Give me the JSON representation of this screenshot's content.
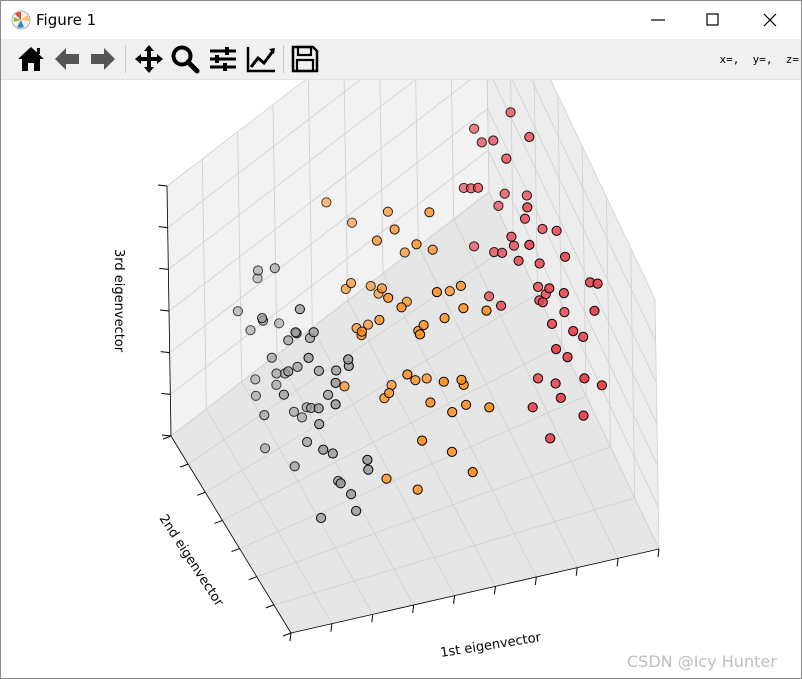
{
  "window": {
    "title": "Figure 1",
    "app_icon": "matplotlib-icon",
    "controls": [
      "minimize-icon",
      "maximize-icon",
      "close-icon"
    ]
  },
  "toolbar": {
    "buttons": [
      "home-icon",
      "back-arrow-icon",
      "forward-arrow-icon",
      "pan-move-icon",
      "zoom-magnifier-icon",
      "configure-subplots-icon",
      "edit-axis-line-icon",
      "save-disk-icon"
    ],
    "coords_readout": "x=,  y=,  z="
  },
  "watermark": "CSDN @Icy Hunter",
  "chart_data": {
    "type": "scatter",
    "projection": "3d",
    "title": "",
    "xlabel": "1st eigenvector",
    "ylabel": "2nd eigenvector",
    "zlabel": "3rd eigenvector",
    "tick_labels_visible": false,
    "grid": true,
    "view": {
      "elev": 30,
      "azim": -110
    },
    "xlim": [
      -4,
      4
    ],
    "ylim": [
      -1.5,
      1.5
    ],
    "zlim": [
      -1,
      1
    ],
    "series": [
      {
        "color": "#999999",
        "points": [
          [
            -2.6,
            0.2,
            0.5
          ],
          [
            -2.4,
            0.4,
            0.6
          ],
          [
            -2.8,
            -0.2,
            0.1
          ],
          [
            -3.0,
            0.6,
            0.8
          ],
          [
            -2.9,
            0.8,
            0.7
          ],
          [
            -2.2,
            0.3,
            0.2
          ],
          [
            -2.5,
            -0.4,
            -0.2
          ],
          [
            -2.1,
            -0.6,
            -0.4
          ],
          [
            -2.7,
            0.1,
            0.4
          ],
          [
            -2.3,
            -0.1,
            0.0
          ],
          [
            -2.0,
            0.5,
            0.3
          ],
          [
            -2.6,
            -0.8,
            -0.6
          ],
          [
            -2.4,
            0.9,
            0.5
          ],
          [
            -2.2,
            -0.3,
            -0.5
          ],
          [
            -1.9,
            0.2,
            -0.1
          ],
          [
            -2.8,
            0.5,
            0.9
          ],
          [
            -3.2,
            0.0,
            0.6
          ],
          [
            -2.5,
            1.0,
            0.4
          ],
          [
            -2.1,
            0.0,
            -0.3
          ],
          [
            -2.0,
            -0.9,
            -0.7
          ],
          [
            -2.7,
            -0.5,
            0.2
          ],
          [
            -2.3,
            0.7,
            -0.2
          ],
          [
            -1.8,
            -0.4,
            -0.6
          ],
          [
            -2.6,
            1.2,
            -0.1
          ],
          [
            -2.4,
            -1.1,
            -0.3
          ],
          [
            -2.9,
            0.3,
            0.3
          ],
          [
            -2.2,
            -1.2,
            -0.8
          ],
          [
            -2.0,
            0.8,
            -0.5
          ],
          [
            -1.7,
            0.6,
            -0.8
          ],
          [
            -2.5,
            0.0,
            -0.7
          ],
          [
            -2.8,
            -1.0,
            0.0
          ],
          [
            -1.9,
            -0.2,
            0.1
          ],
          [
            -2.3,
            1.1,
            0.8
          ],
          [
            -2.6,
            -0.6,
            -0.9
          ],
          [
            -1.6,
            0.1,
            -0.9
          ],
          [
            -2.1,
            1.3,
            0.1
          ],
          [
            -2.4,
            0.2,
            -0.4
          ],
          [
            -2.7,
            0.9,
            0.0
          ],
          [
            -1.8,
            1.0,
            -0.2
          ],
          [
            -2.2,
            -0.7,
            0.4
          ],
          [
            -2.0,
            -1.3,
            -0.1
          ],
          [
            -2.5,
            0.6,
            0.0
          ],
          [
            -1.5,
            -0.8,
            -1.0
          ],
          [
            -2.9,
            -0.3,
            -0.4
          ],
          [
            -2.3,
            0.4,
            -0.9
          ],
          [
            -2.6,
            0.7,
            0.2
          ],
          [
            -1.7,
            -1.1,
            -0.4
          ],
          [
            -2.1,
            0.9,
            0.6
          ],
          [
            -3.1,
            0.4,
            0.2
          ],
          [
            -2.4,
            -0.9,
            0.3
          ]
        ]
      },
      {
        "color": "#ff8c1a",
        "points": [
          [
            -0.8,
            0.3,
            0.4
          ],
          [
            -0.5,
            0.5,
            0.6
          ],
          [
            -0.2,
            -0.2,
            0.2
          ],
          [
            0.3,
            0.1,
            0.0
          ],
          [
            0.6,
            -0.4,
            -0.2
          ],
          [
            -0.3,
            0.7,
            0.5
          ],
          [
            0.1,
            0.4,
            0.3
          ],
          [
            -0.7,
            -0.3,
            -0.1
          ],
          [
            0.5,
            0.6,
            -0.3
          ],
          [
            -0.1,
            -0.6,
            -0.4
          ],
          [
            0.8,
            0.2,
            0.1
          ],
          [
            -0.4,
            0.0,
            -0.5
          ],
          [
            0.2,
            -0.8,
            -0.3
          ],
          [
            -0.9,
            0.6,
            0.8
          ],
          [
            0.4,
            0.9,
            0.2
          ],
          [
            -0.6,
            -0.5,
            0.1
          ],
          [
            0.7,
            -0.1,
            -0.6
          ],
          [
            0.0,
            0.3,
            -0.2
          ],
          [
            -0.3,
            0.9,
            0.1
          ],
          [
            0.9,
            0.5,
            0.4
          ],
          [
            -0.8,
            -0.1,
            0.0
          ],
          [
            0.3,
            -0.5,
            0.5
          ],
          [
            -0.5,
            0.2,
            -0.3
          ],
          [
            0.6,
            0.8,
            -0.1
          ],
          [
            1.0,
            -0.2,
            0.3
          ],
          [
            -0.2,
            1.1,
            0.4
          ],
          [
            0.1,
            -0.3,
            -0.7
          ],
          [
            -0.7,
            0.8,
            0.3
          ],
          [
            0.4,
            0.0,
            0.6
          ],
          [
            -0.4,
            -0.8,
            -0.2
          ],
          [
            0.8,
            -0.6,
            0.0
          ],
          [
            -1.0,
            0.1,
            0.2
          ],
          [
            0.2,
            0.6,
            0.7
          ],
          [
            0.5,
            -0.9,
            -0.5
          ],
          [
            -0.6,
            1.0,
            -0.1
          ],
          [
            1.1,
            0.3,
            -0.4
          ],
          [
            -0.1,
            0.0,
            0.8
          ],
          [
            0.7,
            0.4,
            -0.8
          ],
          [
            -0.9,
            -0.4,
            -0.6
          ],
          [
            0.0,
            -1.0,
            0.1
          ],
          [
            1.3,
            0.1,
            0.2
          ],
          [
            -0.3,
            -0.2,
            0.6
          ],
          [
            0.9,
            1.0,
            0.0
          ],
          [
            -0.8,
            0.4,
            -0.8
          ],
          [
            0.6,
            0.1,
            0.9
          ],
          [
            1.5,
            -0.3,
            -0.2
          ],
          [
            -0.5,
            -1.1,
            0.3
          ],
          [
            0.3,
            1.2,
            -0.3
          ],
          [
            1.2,
            0.7,
            0.5
          ],
          [
            -0.2,
            0.5,
            -0.9
          ]
        ]
      },
      {
        "color": "#e8404a",
        "points": [
          [
            2.4,
            0.3,
            0.4
          ],
          [
            2.7,
            0.5,
            0.2
          ],
          [
            2.9,
            -0.2,
            0.0
          ],
          [
            3.1,
            0.1,
            -0.2
          ],
          [
            2.5,
            0.8,
            0.6
          ],
          [
            2.8,
            -0.5,
            -0.3
          ],
          [
            3.3,
            0.4,
            0.1
          ],
          [
            2.6,
            0.0,
            0.3
          ],
          [
            3.0,
            0.7,
            -0.1
          ],
          [
            2.2,
            -0.3,
            0.5
          ],
          [
            3.5,
            -0.1,
            -0.4
          ],
          [
            2.9,
            0.9,
            0.3
          ],
          [
            2.3,
            0.6,
            0.8
          ],
          [
            3.2,
            -0.6,
            0.0
          ],
          [
            2.7,
            -0.8,
            -0.5
          ],
          [
            3.6,
            0.5,
            -0.2
          ],
          [
            2.5,
            -0.1,
            0.1
          ],
          [
            3.4,
            0.2,
            0.4
          ],
          [
            2.8,
            0.3,
            -0.6
          ],
          [
            3.0,
            -0.4,
            0.5
          ],
          [
            2.1,
            0.2,
            0.0
          ],
          [
            3.7,
            -0.3,
            -0.1
          ],
          [
            2.6,
            0.9,
            -0.2
          ],
          [
            3.1,
            0.6,
            0.6
          ],
          [
            2.4,
            -0.6,
            0.2
          ],
          [
            3.3,
            -0.8,
            -0.3
          ],
          [
            2.9,
            1.1,
            0.1
          ],
          [
            3.8,
            0.0,
            -0.5
          ],
          [
            2.2,
            0.7,
            -0.4
          ],
          [
            3.5,
            0.8,
            0.3
          ],
          [
            2.7,
            -0.4,
            0.7
          ],
          [
            3.2,
            0.3,
            -0.7
          ],
          [
            2.5,
            0.4,
            0.9
          ],
          [
            3.0,
            -1.0,
            0.2
          ],
          [
            3.6,
            -0.5,
            0.0
          ],
          [
            2.8,
            0.1,
            0.5
          ],
          [
            3.4,
            1.0,
            -0.1
          ],
          [
            2.3,
            -0.2,
            -0.3
          ],
          [
            3.9,
            0.4,
            0.1
          ],
          [
            2.6,
            -0.9,
            -0.1
          ],
          [
            3.1,
            0.9,
            -0.4
          ],
          [
            2.9,
            0.5,
            0.0
          ],
          [
            3.7,
            0.7,
            0.4
          ],
          [
            2.4,
            1.0,
            0.3
          ],
          [
            3.3,
            -0.2,
            0.8
          ],
          [
            2.7,
            0.6,
            -0.8
          ],
          [
            3.0,
            0.2,
            0.2
          ],
          [
            3.5,
            -0.7,
            0.5
          ],
          [
            2.8,
            -0.7,
            0.4
          ],
          [
            3.2,
            0.0,
            -0.2
          ]
        ]
      }
    ]
  }
}
